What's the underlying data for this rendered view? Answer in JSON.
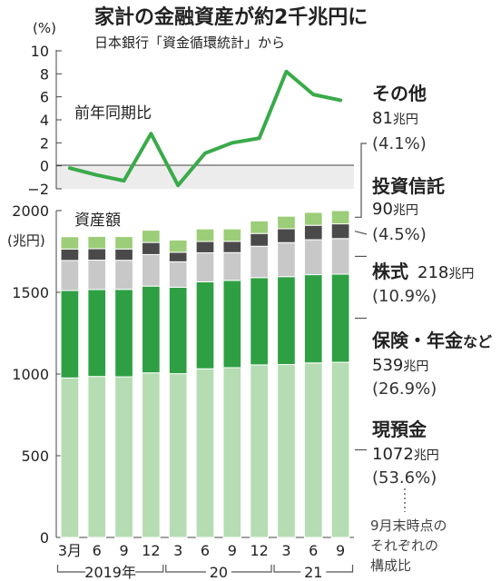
{
  "title": "家計の金融資産が約2千兆円に",
  "subtitle": "日本銀行「資金循環統計」から",
  "chart_data": [
    {
      "type": "line",
      "label": "前年同期比",
      "unit": "(%)",
      "ylim": [
        -2,
        10
      ],
      "yticks": [
        "10",
        "8",
        "6",
        "4",
        "2",
        "0",
        "−2"
      ],
      "x": [
        "3月",
        "6",
        "9",
        "12",
        "3",
        "6",
        "9",
        "12",
        "3",
        "6",
        "9"
      ],
      "values": [
        -0.2,
        -0.8,
        -1.3,
        2.8,
        -1.7,
        1.1,
        2.0,
        2.4,
        8.2,
        6.2,
        5.7
      ],
      "color": "#3aaa4a"
    },
    {
      "type": "bar",
      "stacked": true,
      "label": "資産額",
      "unit": "(兆円)",
      "ylim": [
        0,
        2000
      ],
      "yticks": [
        "2000",
        "1500",
        "1000",
        "500",
        "0"
      ],
      "categories": [
        "3月",
        "6",
        "9",
        "12",
        "3",
        "6",
        "9",
        "12",
        "3",
        "6",
        "9"
      ],
      "year_labels": [
        "2019年",
        "20",
        "21"
      ],
      "series": [
        {
          "key": "cash",
          "color": "#b5dcb2",
          "values": [
            976,
            985,
            983,
            1007,
            1002,
            1032,
            1039,
            1056,
            1058,
            1068,
            1072
          ]
        },
        {
          "key": "insurance",
          "color": "#2ea043",
          "values": [
            535,
            532,
            535,
            531,
            529,
            532,
            534,
            534,
            538,
            540,
            539
          ]
        },
        {
          "key": "stocks",
          "color": "#c8c8c8",
          "values": [
            184,
            180,
            178,
            193,
            156,
            178,
            170,
            192,
            208,
            214,
            218
          ]
        },
        {
          "key": "trusts",
          "color": "#4a4a4a",
          "values": [
            70,
            70,
            69,
            74,
            58,
            69,
            69,
            78,
            85,
            88,
            90
          ]
        },
        {
          "key": "other",
          "color": "#9ccd78",
          "values": [
            75,
            75,
            76,
            75,
            75,
            77,
            76,
            77,
            77,
            79,
            81
          ]
        }
      ]
    }
  ],
  "legend": [
    {
      "key": "other",
      "name": "その他",
      "amount": "81",
      "unit": "兆円",
      "share": "(4.1%)"
    },
    {
      "key": "trusts",
      "name": "投資信託",
      "amount": "90",
      "unit": "兆円",
      "share": "(4.5%)"
    },
    {
      "key": "stocks",
      "name": "株式",
      "amount": "218",
      "unit": "兆円",
      "share": "(10.9%)"
    },
    {
      "key": "insurance",
      "name": "保険・年金",
      "suffix": "など",
      "amount": "539",
      "unit": "兆円",
      "share": "(26.9%)"
    },
    {
      "key": "cash",
      "name": "現預金",
      "amount": "1072",
      "unit": "兆円",
      "share": "(53.6%)"
    }
  ],
  "note_lines": [
    "9月末時点の",
    "それぞれの",
    "構成比"
  ]
}
